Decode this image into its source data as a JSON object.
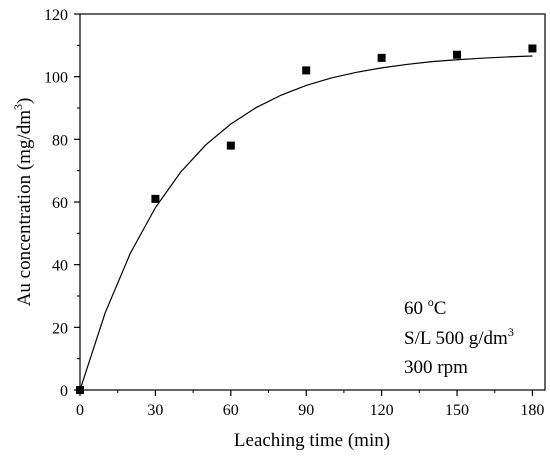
{
  "chart_data": {
    "type": "scatter",
    "title": "",
    "xlabel": "Leaching time (min)",
    "ylabel_main": "Au concentration (mg/dm",
    "ylabel_sup": "3",
    "ylabel_tail": ")",
    "xlim": [
      0,
      185
    ],
    "ylim": [
      0,
      120
    ],
    "xticks": [
      0,
      30,
      60,
      90,
      120,
      150,
      180
    ],
    "yticks": [
      0,
      20,
      40,
      60,
      80,
      100,
      120
    ],
    "grid": false,
    "series": [
      {
        "marker": "square",
        "color": "#000000",
        "x": [
          0,
          30,
          60,
          90,
          120,
          150,
          180
        ],
        "y": [
          0,
          61,
          78,
          102,
          106,
          107,
          109
        ]
      }
    ],
    "fit_curve": {
      "type": "line",
      "color": "#000000",
      "x": [
        0,
        10,
        20,
        30,
        40,
        50,
        60,
        70,
        80,
        90,
        100,
        110,
        120,
        130,
        140,
        150,
        160,
        170,
        180
      ],
      "y": [
        0,
        24.6,
        43.6,
        58.2,
        69.5,
        78.2,
        84.9,
        90.1,
        94.1,
        97.2,
        99.6,
        101.4,
        102.8,
        103.9,
        104.8,
        105.4,
        105.9,
        106.3,
        106.6
      ]
    },
    "annotation": {
      "line1_main": "60 ",
      "line1_sup": "o",
      "line1_tail": "C",
      "line2_main": "S/L 500 g/dm",
      "line2_sup": "3",
      "line3": "300 rpm"
    }
  }
}
